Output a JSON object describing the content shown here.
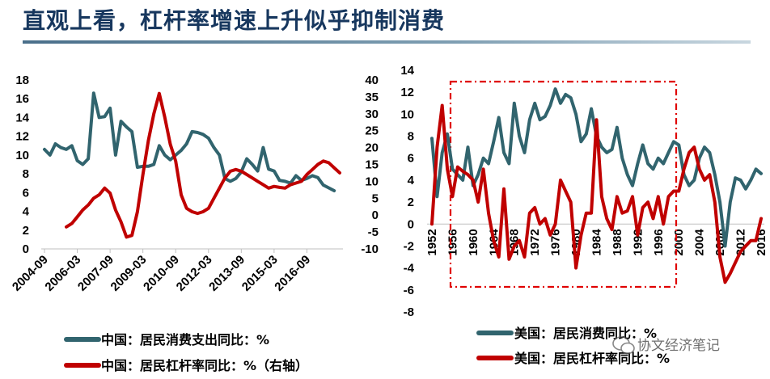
{
  "title": "直观上看，杠杆率增速上升似乎抑制消费",
  "watermark": "协文经济笔记",
  "colors": {
    "teal": "#31646e",
    "red": "#c00000",
    "title": "#17375e",
    "box": "#e00000"
  },
  "chart_data": [
    {
      "type": "line",
      "name": "china",
      "left_axis": {
        "ylim": [
          0,
          18
        ],
        "ticks": [
          "0",
          "2",
          "4",
          "6",
          "8",
          "10",
          "12",
          "14",
          "16",
          "18"
        ]
      },
      "right_axis": {
        "ylim": [
          -10,
          40
        ],
        "ticks": [
          "-10",
          "-5",
          "0",
          "5",
          "10",
          "15",
          "20",
          "25",
          "30",
          "35",
          "40"
        ]
      },
      "x_tick_labels": [
        "2004-09",
        "2006-03",
        "2007-09",
        "2009-03",
        "2010-09",
        "2012-03",
        "2013-09",
        "2015-03",
        "2016-09"
      ],
      "x_tick_index": [
        0,
        6,
        12,
        18,
        24,
        30,
        36,
        42,
        48
      ],
      "x_count": 55,
      "series": [
        {
          "name": "中国：居民消费支出同比：%",
          "axis": "left",
          "color": "#31646e",
          "values": [
            10.6,
            10.0,
            11.2,
            10.8,
            10.6,
            11.0,
            9.4,
            9.0,
            9.6,
            16.6,
            14.0,
            14.1,
            15.0,
            10.0,
            13.6,
            13.0,
            12.5,
            8.7,
            8.8,
            8.8,
            9.0,
            11.0,
            10.0,
            9.5,
            10.0,
            10.5,
            11.2,
            12.5,
            12.4,
            12.2,
            11.8,
            10.8,
            10.0,
            7.5,
            7.2,
            7.5,
            8.2,
            9.6,
            9.0,
            8.3,
            10.8,
            8.5,
            8.3,
            7.3,
            7.2,
            7.0,
            7.8,
            7.3,
            7.5,
            7.8,
            7.6,
            6.8,
            6.5,
            6.2,
            null
          ]
        },
        {
          "name": "中国：居民杠杆率同比：%（右轴）",
          "axis": "right",
          "color": "#c00000",
          "values": [
            null,
            null,
            null,
            null,
            -3.5,
            -2.5,
            -0.5,
            1.5,
            3.0,
            5.0,
            6.0,
            8.0,
            6.5,
            1.5,
            -2.0,
            -6.5,
            -6.0,
            1.0,
            12.0,
            22.0,
            30.0,
            36.0,
            29.0,
            21.0,
            16.0,
            6.0,
            2.0,
            1.0,
            0.5,
            1.0,
            2.0,
            5.0,
            8.0,
            11.0,
            13.0,
            13.5,
            13.0,
            12.0,
            11.0,
            10.0,
            9.0,
            8.0,
            8.5,
            8.2,
            8.0,
            9.0,
            9.5,
            10.0,
            12.0,
            13.5,
            15.0,
            16.0,
            15.5,
            14.0,
            12.5
          ]
        }
      ]
    },
    {
      "type": "line",
      "name": "us",
      "ylim": [
        -8,
        14
      ],
      "y_ticks": [
        "-8",
        "-6",
        "-4",
        "-2",
        "0",
        "2",
        "4",
        "6",
        "8",
        "10",
        "12",
        "14"
      ],
      "x_tick_labels": [
        "1952",
        "1956",
        "1960",
        "1964",
        "1968",
        "1972",
        "1976",
        "1980",
        "1984",
        "1988",
        "1992",
        "1996",
        "2000",
        "2004",
        "2008",
        "2012",
        "2016"
      ],
      "x_range": [
        1952,
        2016
      ],
      "series": [
        {
          "name": "美国：居民消费同比：%",
          "color": "#31646e",
          "x": [
            1952,
            1953,
            1954,
            1955,
            1956,
            1957,
            1958,
            1959,
            1960,
            1961,
            1962,
            1963,
            1964,
            1965,
            1966,
            1967,
            1968,
            1969,
            1970,
            1971,
            1972,
            1973,
            1974,
            1975,
            1976,
            1977,
            1978,
            1979,
            1980,
            1981,
            1982,
            1983,
            1984,
            1985,
            1986,
            1987,
            1988,
            1989,
            1990,
            1991,
            1992,
            1993,
            1994,
            1995,
            1996,
            1997,
            1998,
            1999,
            2000,
            2001,
            2002,
            2003,
            2004,
            2005,
            2006,
            2007,
            2008,
            2009,
            2010,
            2011,
            2012,
            2013,
            2014,
            2015,
            2016
          ],
          "values": [
            7.8,
            2.5,
            6.5,
            8.2,
            5.0,
            4.5,
            4.0,
            7.0,
            3.5,
            4.5,
            6.0,
            5.5,
            7.5,
            9.7,
            6.5,
            5.5,
            11.0,
            8.0,
            6.5,
            9.5,
            11.0,
            9.5,
            9.8,
            10.8,
            12.3,
            11.0,
            11.8,
            11.5,
            10.0,
            7.5,
            8.2,
            10.5,
            8.0,
            7.0,
            6.5,
            6.8,
            8.8,
            6.0,
            4.5,
            3.5,
            5.5,
            7.2,
            5.5,
            5.0,
            6.0,
            5.5,
            6.5,
            7.5,
            7.2,
            4.5,
            3.5,
            4.0,
            6.0,
            7.0,
            6.5,
            4.5,
            2.0,
            -2.0,
            2.0,
            4.2,
            4.0,
            3.2,
            4.0,
            5.0,
            4.6
          ]
        },
        {
          "name": "美国：居民杠杆率同比：%",
          "color": "#c00000",
          "x": [
            1952,
            1953,
            1954,
            1955,
            1956,
            1957,
            1958,
            1959,
            1960,
            1961,
            1962,
            1963,
            1964,
            1965,
            1966,
            1967,
            1968,
            1969,
            1970,
            1971,
            1972,
            1973,
            1974,
            1975,
            1976,
            1977,
            1978,
            1979,
            1980,
            1981,
            1982,
            1983,
            1984,
            1985,
            1986,
            1987,
            1988,
            1989,
            1990,
            1991,
            1992,
            1993,
            1994,
            1995,
            1996,
            1997,
            1998,
            1999,
            2000,
            2001,
            2002,
            2003,
            2004,
            2005,
            2006,
            2007,
            2008,
            2009,
            2010,
            2011,
            2012,
            2013,
            2014,
            2015,
            2016
          ],
          "values": [
            0.0,
            7.0,
            10.8,
            5.0,
            2.5,
            5.2,
            4.8,
            4.5,
            4.0,
            2.0,
            5.0,
            1.0,
            -1.5,
            -3.0,
            3.2,
            -3.2,
            -2.0,
            -1.5,
            -3.0,
            1.0,
            1.5,
            0.0,
            0.5,
            -1.0,
            0.0,
            4.0,
            3.0,
            2.0,
            -4.0,
            -1.0,
            1.0,
            1.0,
            9.5,
            2.5,
            0.5,
            -0.5,
            2.5,
            1.0,
            1.2,
            2.5,
            -1.0,
            1.5,
            2.0,
            0.5,
            2.5,
            0.0,
            2.5,
            3.0,
            3.0,
            5.0,
            6.5,
            7.0,
            5.0,
            4.0,
            4.5,
            2.0,
            -3.0,
            -5.3,
            -4.5,
            -3.5,
            -2.5,
            -2.0,
            -1.5,
            -1.5,
            0.5
          ]
        }
      ]
    }
  ]
}
